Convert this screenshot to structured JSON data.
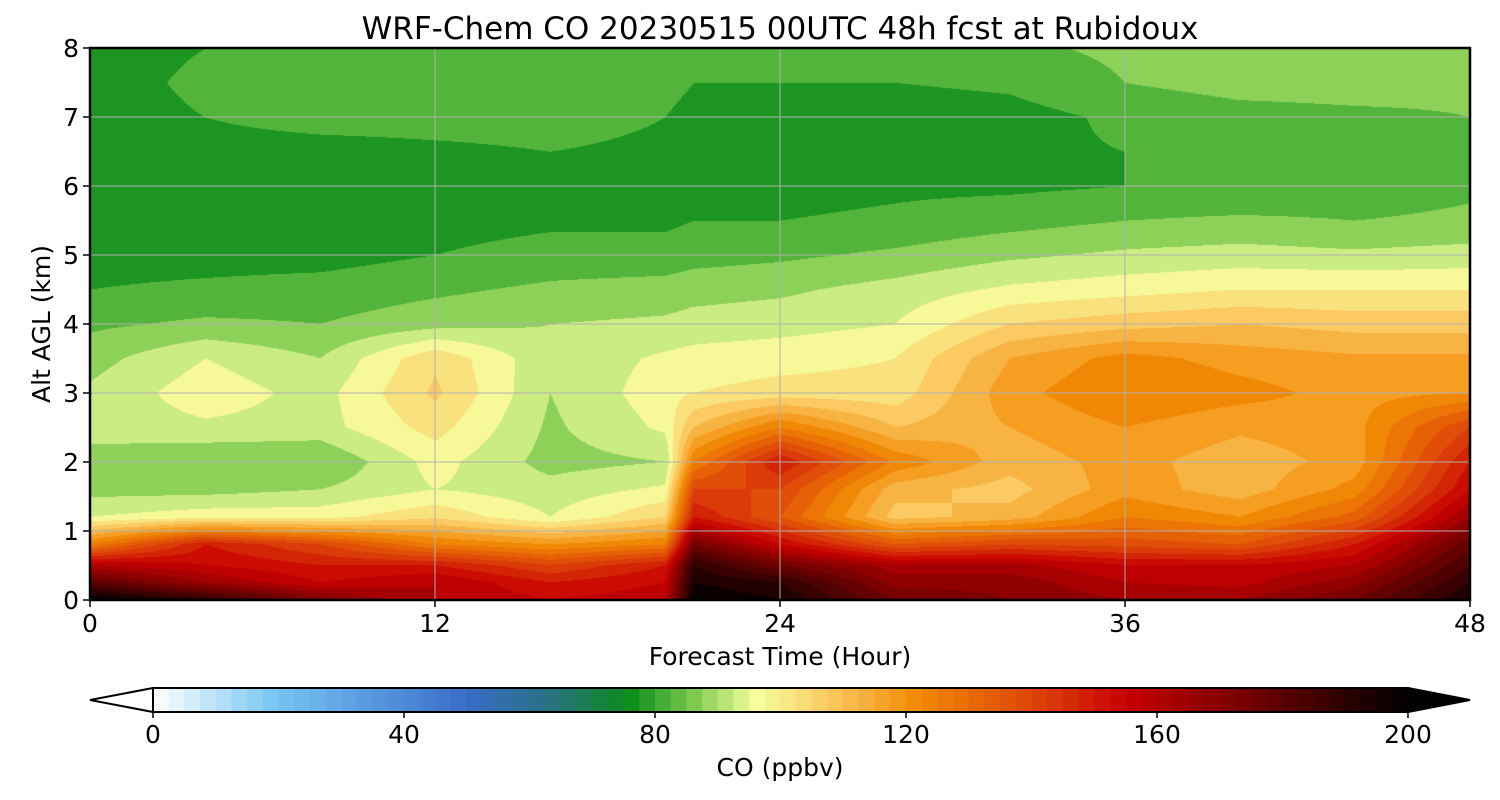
{
  "chart_data": {
    "type": "heatmap",
    "title": "WRF-Chem CO  20230515 00UTC 48h fcst at Rubidoux",
    "xlabel": "Forecast Time (Hour)",
    "ylabel": "Alt AGL (km)",
    "xlim": [
      0,
      48
    ],
    "ylim": [
      0,
      8
    ],
    "x_ticks": [
      "0",
      "12",
      "24",
      "36",
      "48"
    ],
    "y_ticks": [
      "0",
      "1",
      "2",
      "3",
      "4",
      "5",
      "6",
      "7",
      "8"
    ],
    "grid": true,
    "colorbar": {
      "label": "CO  (ppbv)",
      "range": [
        0,
        200
      ],
      "ticks": [
        "0",
        "40",
        "80",
        "120",
        "160",
        "200"
      ],
      "extend": "both",
      "stops": [
        {
          "v": 0,
          "c": "#ffffff"
        },
        {
          "v": 20,
          "c": "#74c4f2"
        },
        {
          "v": 50,
          "c": "#3a6cc8"
        },
        {
          "v": 62,
          "c": "#2a6f8a"
        },
        {
          "v": 76,
          "c": "#0b8c1a"
        },
        {
          "v": 86,
          "c": "#7ac94c"
        },
        {
          "v": 96,
          "c": "#f6ffa0"
        },
        {
          "v": 108,
          "c": "#fbc860"
        },
        {
          "v": 122,
          "c": "#f28a05"
        },
        {
          "v": 144,
          "c": "#d83508"
        },
        {
          "v": 155,
          "c": "#c80000"
        },
        {
          "v": 180,
          "c": "#5a0000"
        },
        {
          "v": 200,
          "c": "#000000"
        }
      ]
    },
    "data_grid": {
      "x": [
        0,
        4,
        8,
        12,
        16,
        20,
        21,
        24,
        28,
        32,
        36,
        40,
        44,
        48
      ],
      "y": [
        0,
        0.25,
        0.5,
        0.8,
        1.2,
        1.6,
        2.0,
        2.5,
        3.0,
        3.5,
        4.0,
        4.5,
        5.0,
        5.5,
        6.0,
        6.5,
        7.0,
        7.5,
        8.0
      ],
      "z": [
        [
          200,
          190,
          172,
          160,
          155,
          158,
          200,
          195,
          175,
          170,
          165,
          165,
          175,
          195
        ],
        [
          180,
          165,
          155,
          160,
          150,
          155,
          195,
          190,
          168,
          168,
          160,
          158,
          168,
          190
        ],
        [
          160,
          155,
          150,
          150,
          140,
          150,
          190,
          175,
          162,
          162,
          155,
          155,
          160,
          185
        ],
        [
          125,
          150,
          140,
          125,
          120,
          125,
          175,
          155,
          135,
          140,
          138,
          135,
          150,
          178
        ],
        [
          95,
          98,
          98,
          104,
          95,
          105,
          150,
          135,
          108,
          112,
          125,
          120,
          132,
          165
        ],
        [
          88,
          88,
          90,
          95,
          92,
          96,
          140,
          140,
          112,
          108,
          118,
          112,
          122,
          155
        ],
        [
          88,
          85,
          85,
          97,
          88,
          90,
          125,
          150,
          124,
          112,
          117,
          112,
          117,
          150
        ],
        [
          92,
          94,
          93,
          102,
          89,
          96,
          110,
          125,
          110,
          115,
          120,
          116,
          118,
          140
        ],
        [
          91,
          98,
          93,
          106,
          90,
          98,
          100,
          102,
          102,
          118,
          125,
          122,
          118,
          120
        ],
        [
          88,
          95,
          90,
          104,
          91,
          96,
          97,
          98,
          100,
          115,
          122,
          118,
          116,
          116
        ],
        [
          84,
          86,
          85,
          88,
          90,
          91,
          92,
          93,
          95,
          105,
          108,
          110,
          108,
          108
        ],
        [
          80,
          81,
          82,
          84,
          86,
          87,
          88,
          89,
          92,
          96,
          98,
          100,
          100,
          100
        ],
        [
          78,
          78,
          78,
          80,
          82,
          82,
          83,
          84,
          86,
          89,
          91,
          92,
          91,
          92
        ],
        [
          77,
          77,
          77,
          78,
          79,
          79,
          80,
          80,
          81,
          83,
          85,
          86,
          85,
          86
        ],
        [
          77,
          77,
          77,
          78,
          79,
          78,
          78,
          78,
          79,
          79,
          80,
          80,
          82,
          84
        ],
        [
          77,
          78,
          78,
          79,
          80,
          79,
          78,
          77,
          78,
          79,
          80,
          81,
          82,
          84
        ],
        [
          78,
          80,
          82,
          82,
          82,
          80,
          79,
          78,
          77,
          78,
          81,
          83,
          84,
          85
        ],
        [
          78,
          81,
          84,
          85,
          84,
          81,
          80,
          80,
          80,
          81,
          85,
          87,
          87,
          86
        ],
        [
          78,
          80,
          83,
          85,
          84,
          80,
          80,
          81,
          82,
          84,
          86,
          88,
          86,
          85
        ]
      ]
    }
  }
}
